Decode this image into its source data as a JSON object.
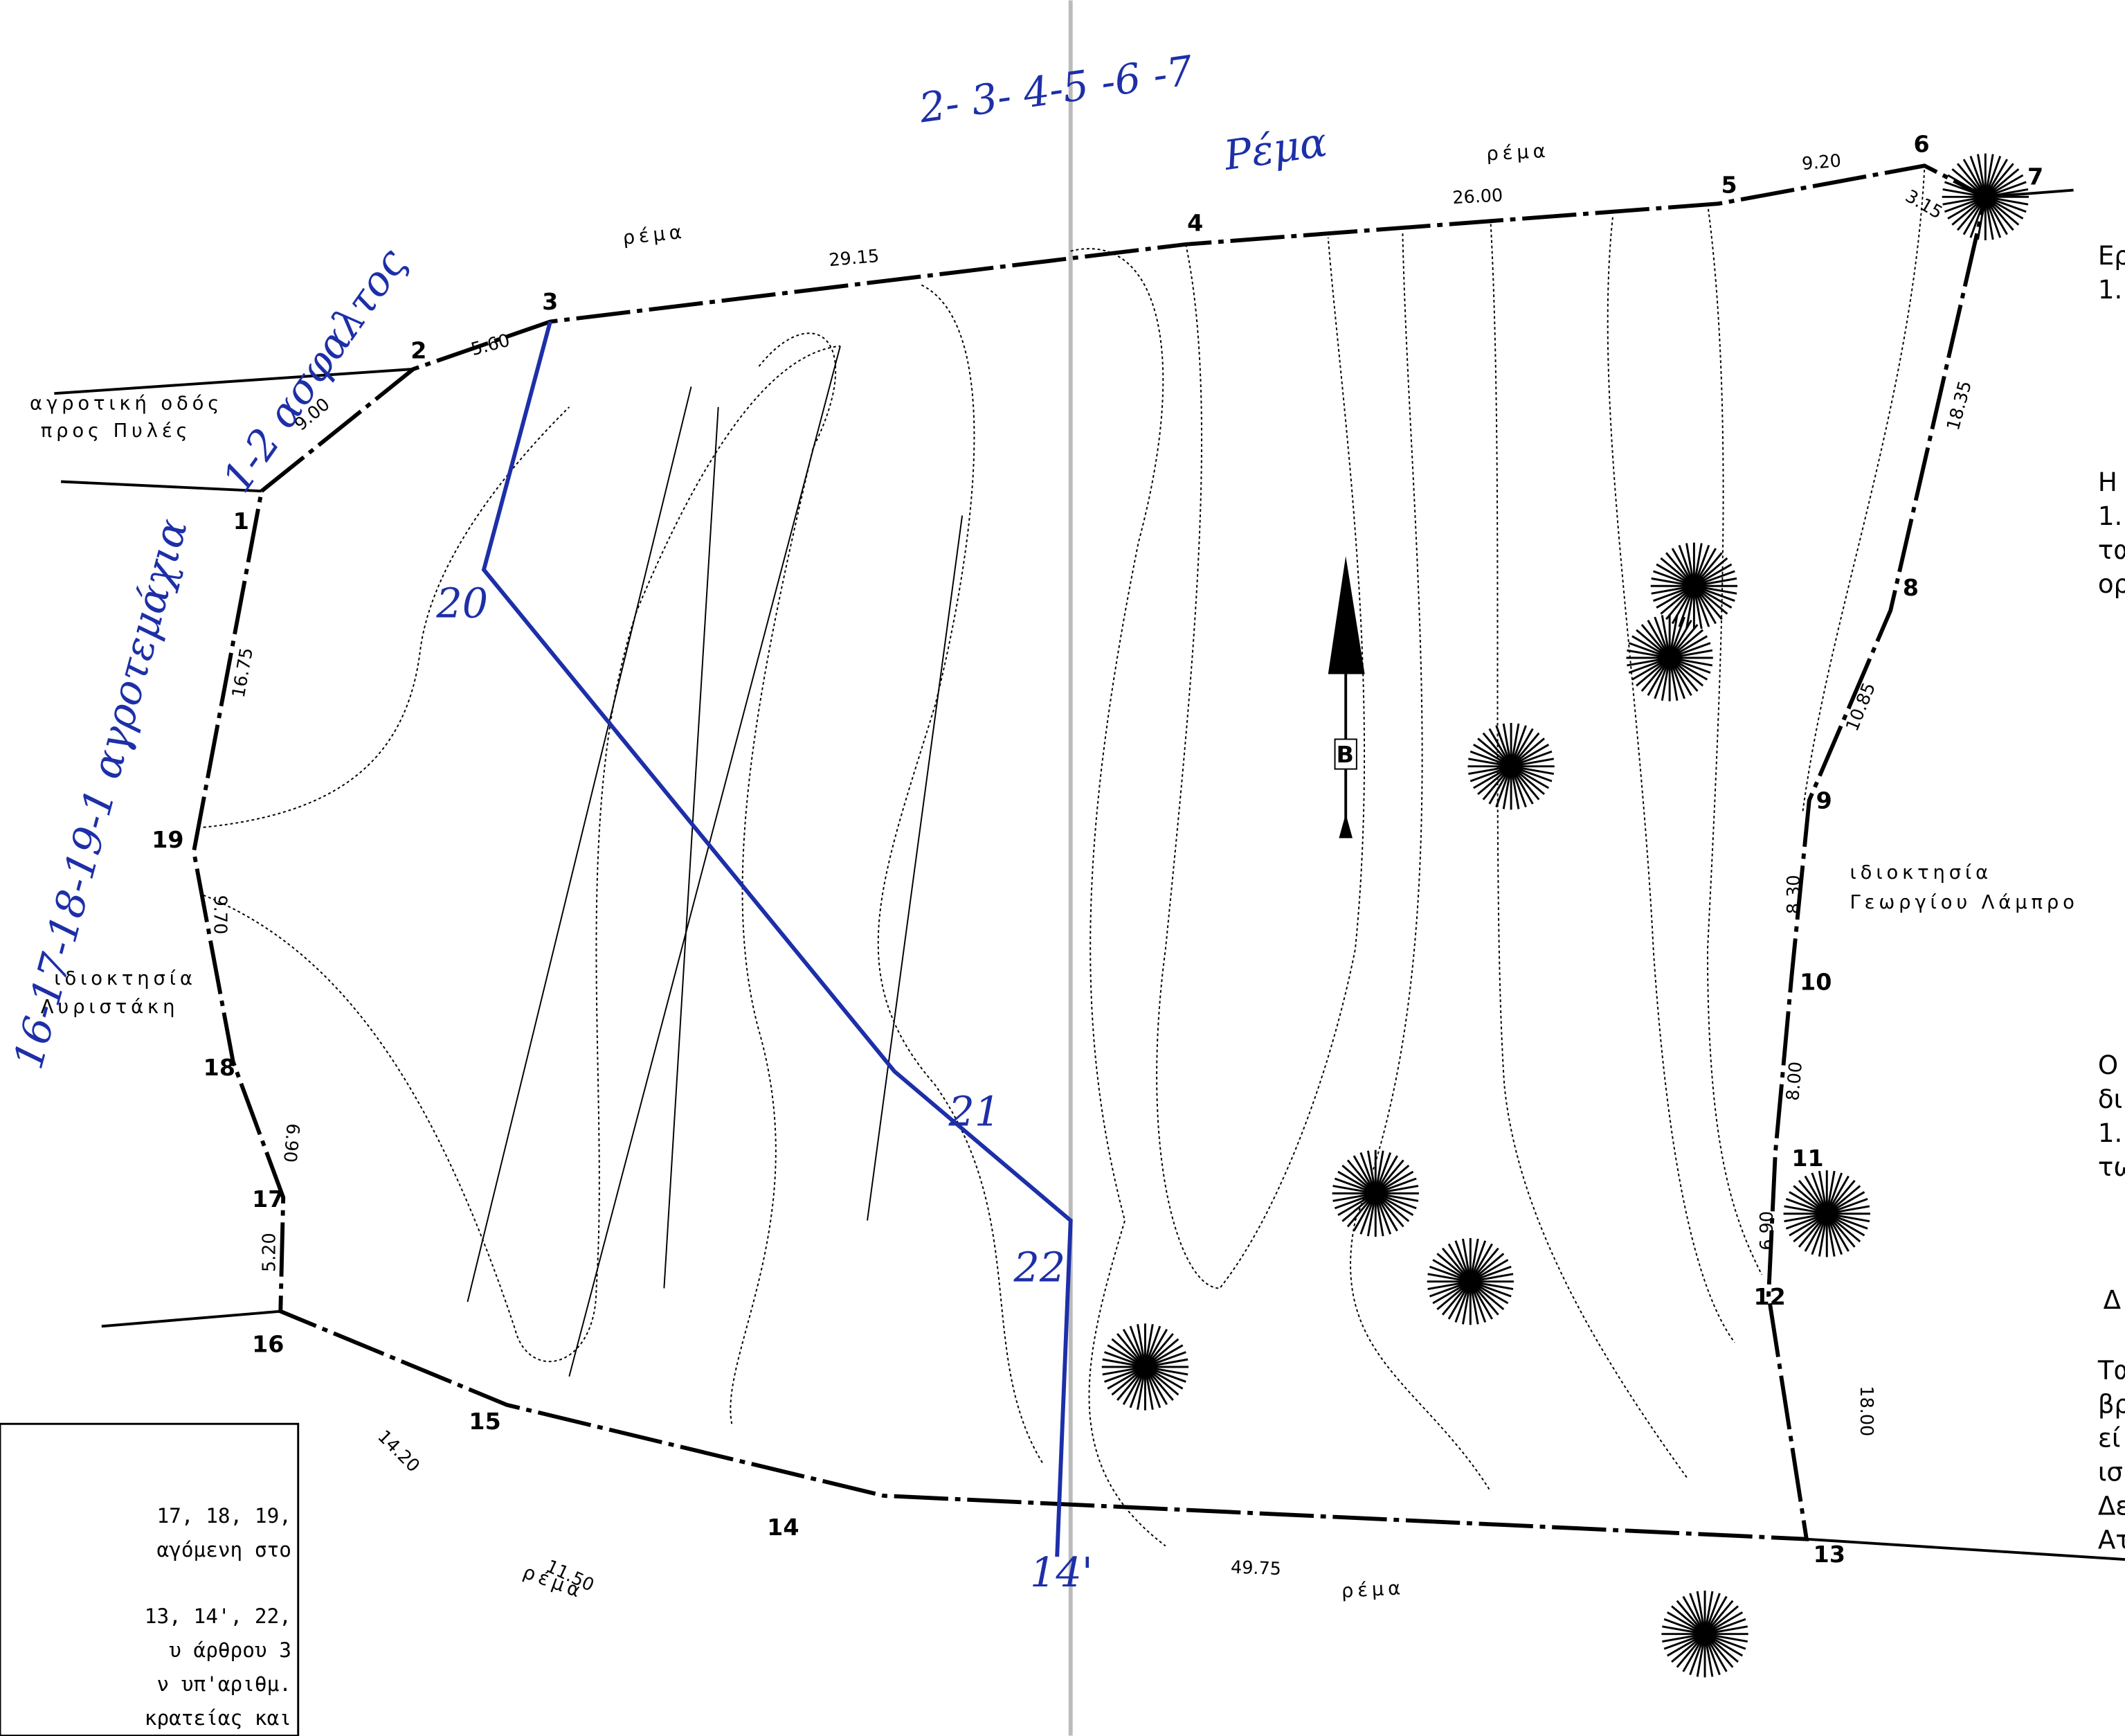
{
  "survey_points": [
    "1",
    "2",
    "3",
    "4",
    "5",
    "6",
    "7",
    "8",
    "9",
    "10",
    "11",
    "12",
    "13",
    "14",
    "15",
    "16",
    "17",
    "18",
    "19"
  ],
  "distances": [
    "9.00",
    "5.60",
    "29.15",
    "26.00",
    "9.20",
    "3.15",
    "18.35",
    "10.85",
    "8.30",
    "8.00",
    "6.90",
    "18.00",
    "49.75",
    "11.50",
    "14.20",
    "5.20",
    "6.90",
    "9.70",
    "16.75"
  ],
  "stream_labels": [
    "ρέμα",
    "ρέμα",
    "ρέμα",
    "ρέμα"
  ],
  "road": [
    "αγροτική οδός",
    "προς Πυλές"
  ],
  "owner_left": [
    "ιδιοκτησία",
    "Λυριστάκη"
  ],
  "owner_right": [
    "ιδιοκτησία",
    "Γεωργίου Λάμπρο"
  ],
  "north": "Β",
  "handwritten": {
    "top_sequence": "2- 3- 4-5 -6 -7",
    "top_word": "Ρέμα",
    "upper_left": "1-2 ασφαλτος",
    "left": "16-17-18-19-1 αγροτεμάχια",
    "points": [
      "20",
      "21",
      "22",
      "14'"
    ]
  },
  "right_text": [
    "Ερ",
    "1.",
    "Η",
    "1.",
    "τα",
    "ορ",
    "Ο",
    "δι",
    "1.",
    "τω",
    "Δ",
    "Τα",
    "βρ",
    "εί",
    "ισ",
    "Δε",
    "Ατ"
  ],
  "legend_box": [
    "17, 18, 19,",
    "αγόμενη στο",
    "13, 14', 22,",
    "υ άρθρου 3",
    "ν υπ'αριθμ.",
    "κρατείας και"
  ]
}
